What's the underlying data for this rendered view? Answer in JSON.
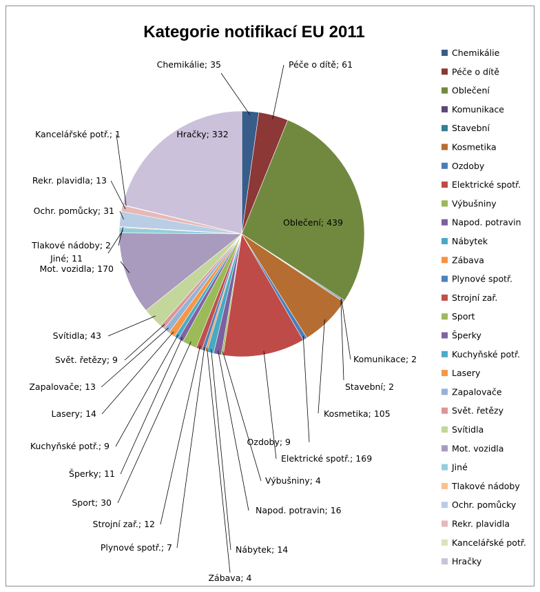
{
  "chart_data": {
    "type": "pie",
    "title": "Kategorie notifikací EU 2011",
    "legend_position": "right",
    "slices": [
      {
        "name": "Chemikálie",
        "value": 35,
        "color": "#385D8A",
        "label": "Chemikálie; 35"
      },
      {
        "name": "Péče o dítě",
        "value": 61,
        "color": "#8C3836",
        "label": "Péče o dítě; 61"
      },
      {
        "name": "Oblečení",
        "value": 439,
        "color": "#71893F",
        "label": "Oblečení; 439"
      },
      {
        "name": "Komunikace",
        "value": 2,
        "color": "#5C4776",
        "label": "Komunikace; 2"
      },
      {
        "name": "Stavební",
        "value": 2,
        "color": "#357D91",
        "label": "Stavební; 2"
      },
      {
        "name": "Kosmetika",
        "value": 105,
        "color": "#B66D31",
        "label": "Kosmetika; 105"
      },
      {
        "name": "Ozdoby",
        "value": 9,
        "color": "#4A7EBB",
        "label": "Ozdoby; 9"
      },
      {
        "name": "Elektrické spotř.",
        "value": 169,
        "color": "#BE4B48",
        "label": "Elektrické spotř.; 169"
      },
      {
        "name": "Výbušniny",
        "value": 4,
        "color": "#98B954",
        "label": "Výbušniny; 4"
      },
      {
        "name": "Napod. potravin",
        "value": 16,
        "color": "#7D60A0",
        "label": "Napod. potravin; 16"
      },
      {
        "name": "Nábytek",
        "value": 14,
        "color": "#46AAC5",
        "label": "Nábytek; 14"
      },
      {
        "name": "Zábava",
        "value": 4,
        "color": "#F69240",
        "label": "Zábava; 4"
      },
      {
        "name": "Plynové spotř.",
        "value": 7,
        "color": "#4F81BD",
        "label": "Plynové spotř.; 7"
      },
      {
        "name": "Strojní zař.",
        "value": 12,
        "color": "#C0504D",
        "label": "Strojní zař.; 12"
      },
      {
        "name": "Sport",
        "value": 30,
        "color": "#9BBB59",
        "label": "Sport; 30"
      },
      {
        "name": "Šperky",
        "value": 11,
        "color": "#8064A2",
        "label": "Šperky; 11"
      },
      {
        "name": "Kuchyňské potř.",
        "value": 9,
        "color": "#4BACC6",
        "label": "Kuchyňské potř.; 9"
      },
      {
        "name": "Lasery",
        "value": 14,
        "color": "#F79646",
        "label": "Lasery; 14"
      },
      {
        "name": "Zapalovače",
        "value": 13,
        "color": "#95B3D7",
        "label": "Zapalovače; 13"
      },
      {
        "name": "Svět. řetězy",
        "value": 9,
        "color": "#D99694",
        "label": "Svět. řetězy; 9"
      },
      {
        "name": "Svítidla",
        "value": 43,
        "color": "#C3D69B",
        "label": "Svítidla; 43"
      },
      {
        "name": "Mot. vozidla",
        "value": 170,
        "color": "#A99BBD",
        "label": "Mot. vozidla; 170"
      },
      {
        "name": "Jiné",
        "value": 11,
        "color": "#92CDDC",
        "label": "Jiné; 11"
      },
      {
        "name": "Tlakové nádoby",
        "value": 2,
        "color": "#FAC090",
        "label": "Tlakové nádoby; 2"
      },
      {
        "name": "Ochr. pomůcky",
        "value": 31,
        "color": "#B9CDE5",
        "label": "Ochr. pomůcky; 31"
      },
      {
        "name": "Rekr. plavidla",
        "value": 13,
        "color": "#E6B9B8",
        "label": "Rekr. plavidla; 13"
      },
      {
        "name": "Kancelářské potř.",
        "value": 1,
        "color": "#D7E4BD",
        "label": "Kancelářské potř.; 1"
      },
      {
        "name": "Hračky",
        "value": 332,
        "color": "#CCC1DA",
        "label": "Hračky; 332"
      }
    ]
  }
}
